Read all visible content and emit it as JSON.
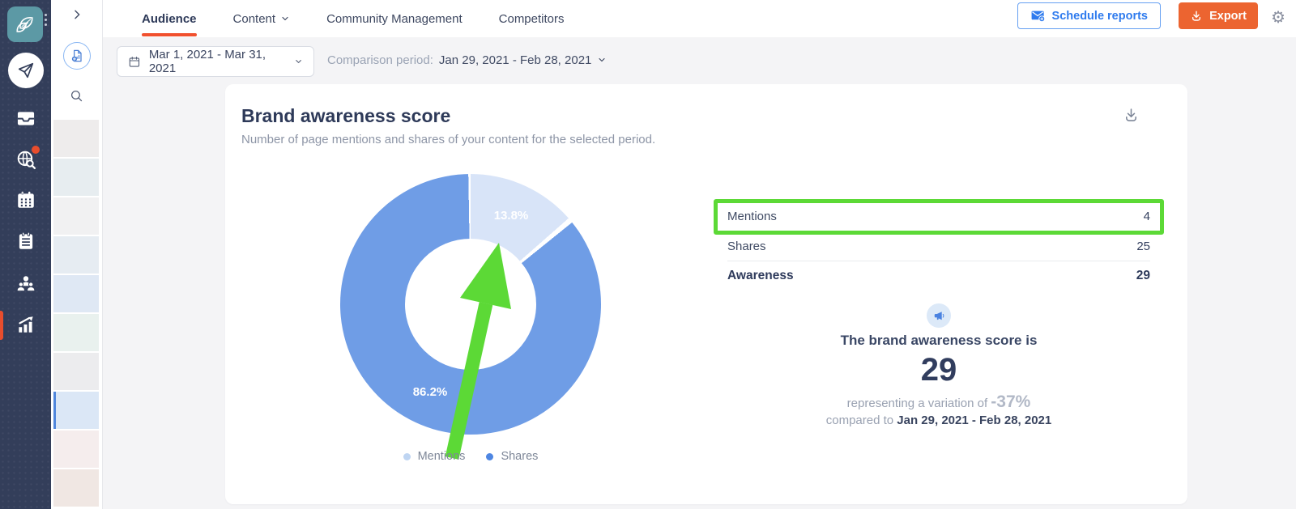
{
  "colors": {
    "sidebar_navy": "#333e5a",
    "brand_teal": "#5c99a5",
    "accent_orange": "#ec6430",
    "tab_underline": "#f1502e",
    "link_blue": "#2f7bee",
    "page_bg": "#f4f4f6",
    "annotation_green": "#5cd936",
    "legend_mentions_dot": "#bfd5f2",
    "legend_shares_dot": "#4e86e2"
  },
  "primary_sidebar": {
    "items": [
      {
        "icon": "paper-plane-icon"
      },
      {
        "icon": "inbox-icon"
      },
      {
        "icon": "globe-search-icon",
        "notification": true
      },
      {
        "icon": "calendar-icon"
      },
      {
        "icon": "notebook-icon"
      },
      {
        "icon": "team-icon"
      },
      {
        "icon": "analytics-icon",
        "active": true
      }
    ]
  },
  "reports_sidebar": {
    "thumbnails": [
      {
        "color": "#eeecec"
      },
      {
        "color": "#e7edf0"
      },
      {
        "color": "#f1f1f2"
      },
      {
        "color": "#e6ecf2"
      },
      {
        "color": "#dfe8f4"
      },
      {
        "color": "#e9f1ee"
      },
      {
        "color": "#ececee"
      },
      {
        "color": "#dbe7f6",
        "active": true
      },
      {
        "color": "#f5eded"
      },
      {
        "color": "#f0e7e3"
      }
    ]
  },
  "topnav": {
    "tabs": [
      {
        "label": "Audience",
        "active": true
      },
      {
        "label": "Content",
        "dropdown": true
      },
      {
        "label": "Community Management"
      },
      {
        "label": "Competitors"
      }
    ],
    "schedule_button": "Schedule reports",
    "export_button": "Export",
    "gear_glyph": "⚙"
  },
  "filters": {
    "date_range": "Mar 1, 2021 - Mar 31, 2021",
    "comparison_label": "Comparison period:",
    "comparison_value": "Jan 29, 2021 - Feb 28, 2021"
  },
  "card": {
    "title": "Brand awareness score",
    "subtitle": "Number of page mentions and shares of your content for the selected period."
  },
  "chart_data": {
    "type": "pie",
    "donut": true,
    "title": "Brand awareness score",
    "start_angle_deg": 0,
    "legend_position": "bottom",
    "slices": [
      {
        "label": "Mentions",
        "value": 4,
        "percent": 13.8,
        "display": "13.8%",
        "color": "#d8e4f8"
      },
      {
        "label": "Shares",
        "value": 25,
        "percent": 86.2,
        "display": "86.2%",
        "color": "#6f9de6"
      }
    ],
    "annotations": {
      "arrow": "green arrow pointing at Mentions slice",
      "box": "green box highlighting Mentions row"
    }
  },
  "stats": {
    "rows": [
      {
        "label": "Mentions",
        "value": "4",
        "highlighted": true
      },
      {
        "label": "Shares",
        "value": "25"
      },
      {
        "label": "Awareness",
        "value": "29",
        "bold": true
      }
    ]
  },
  "score": {
    "line1": "The brand awareness score is",
    "value": "29",
    "variation_prefix": "representing a variation of ",
    "variation_value": "-37%",
    "compared_prefix": "compared to ",
    "compared_value": "Jan 29, 2021 - Feb 28, 2021"
  }
}
